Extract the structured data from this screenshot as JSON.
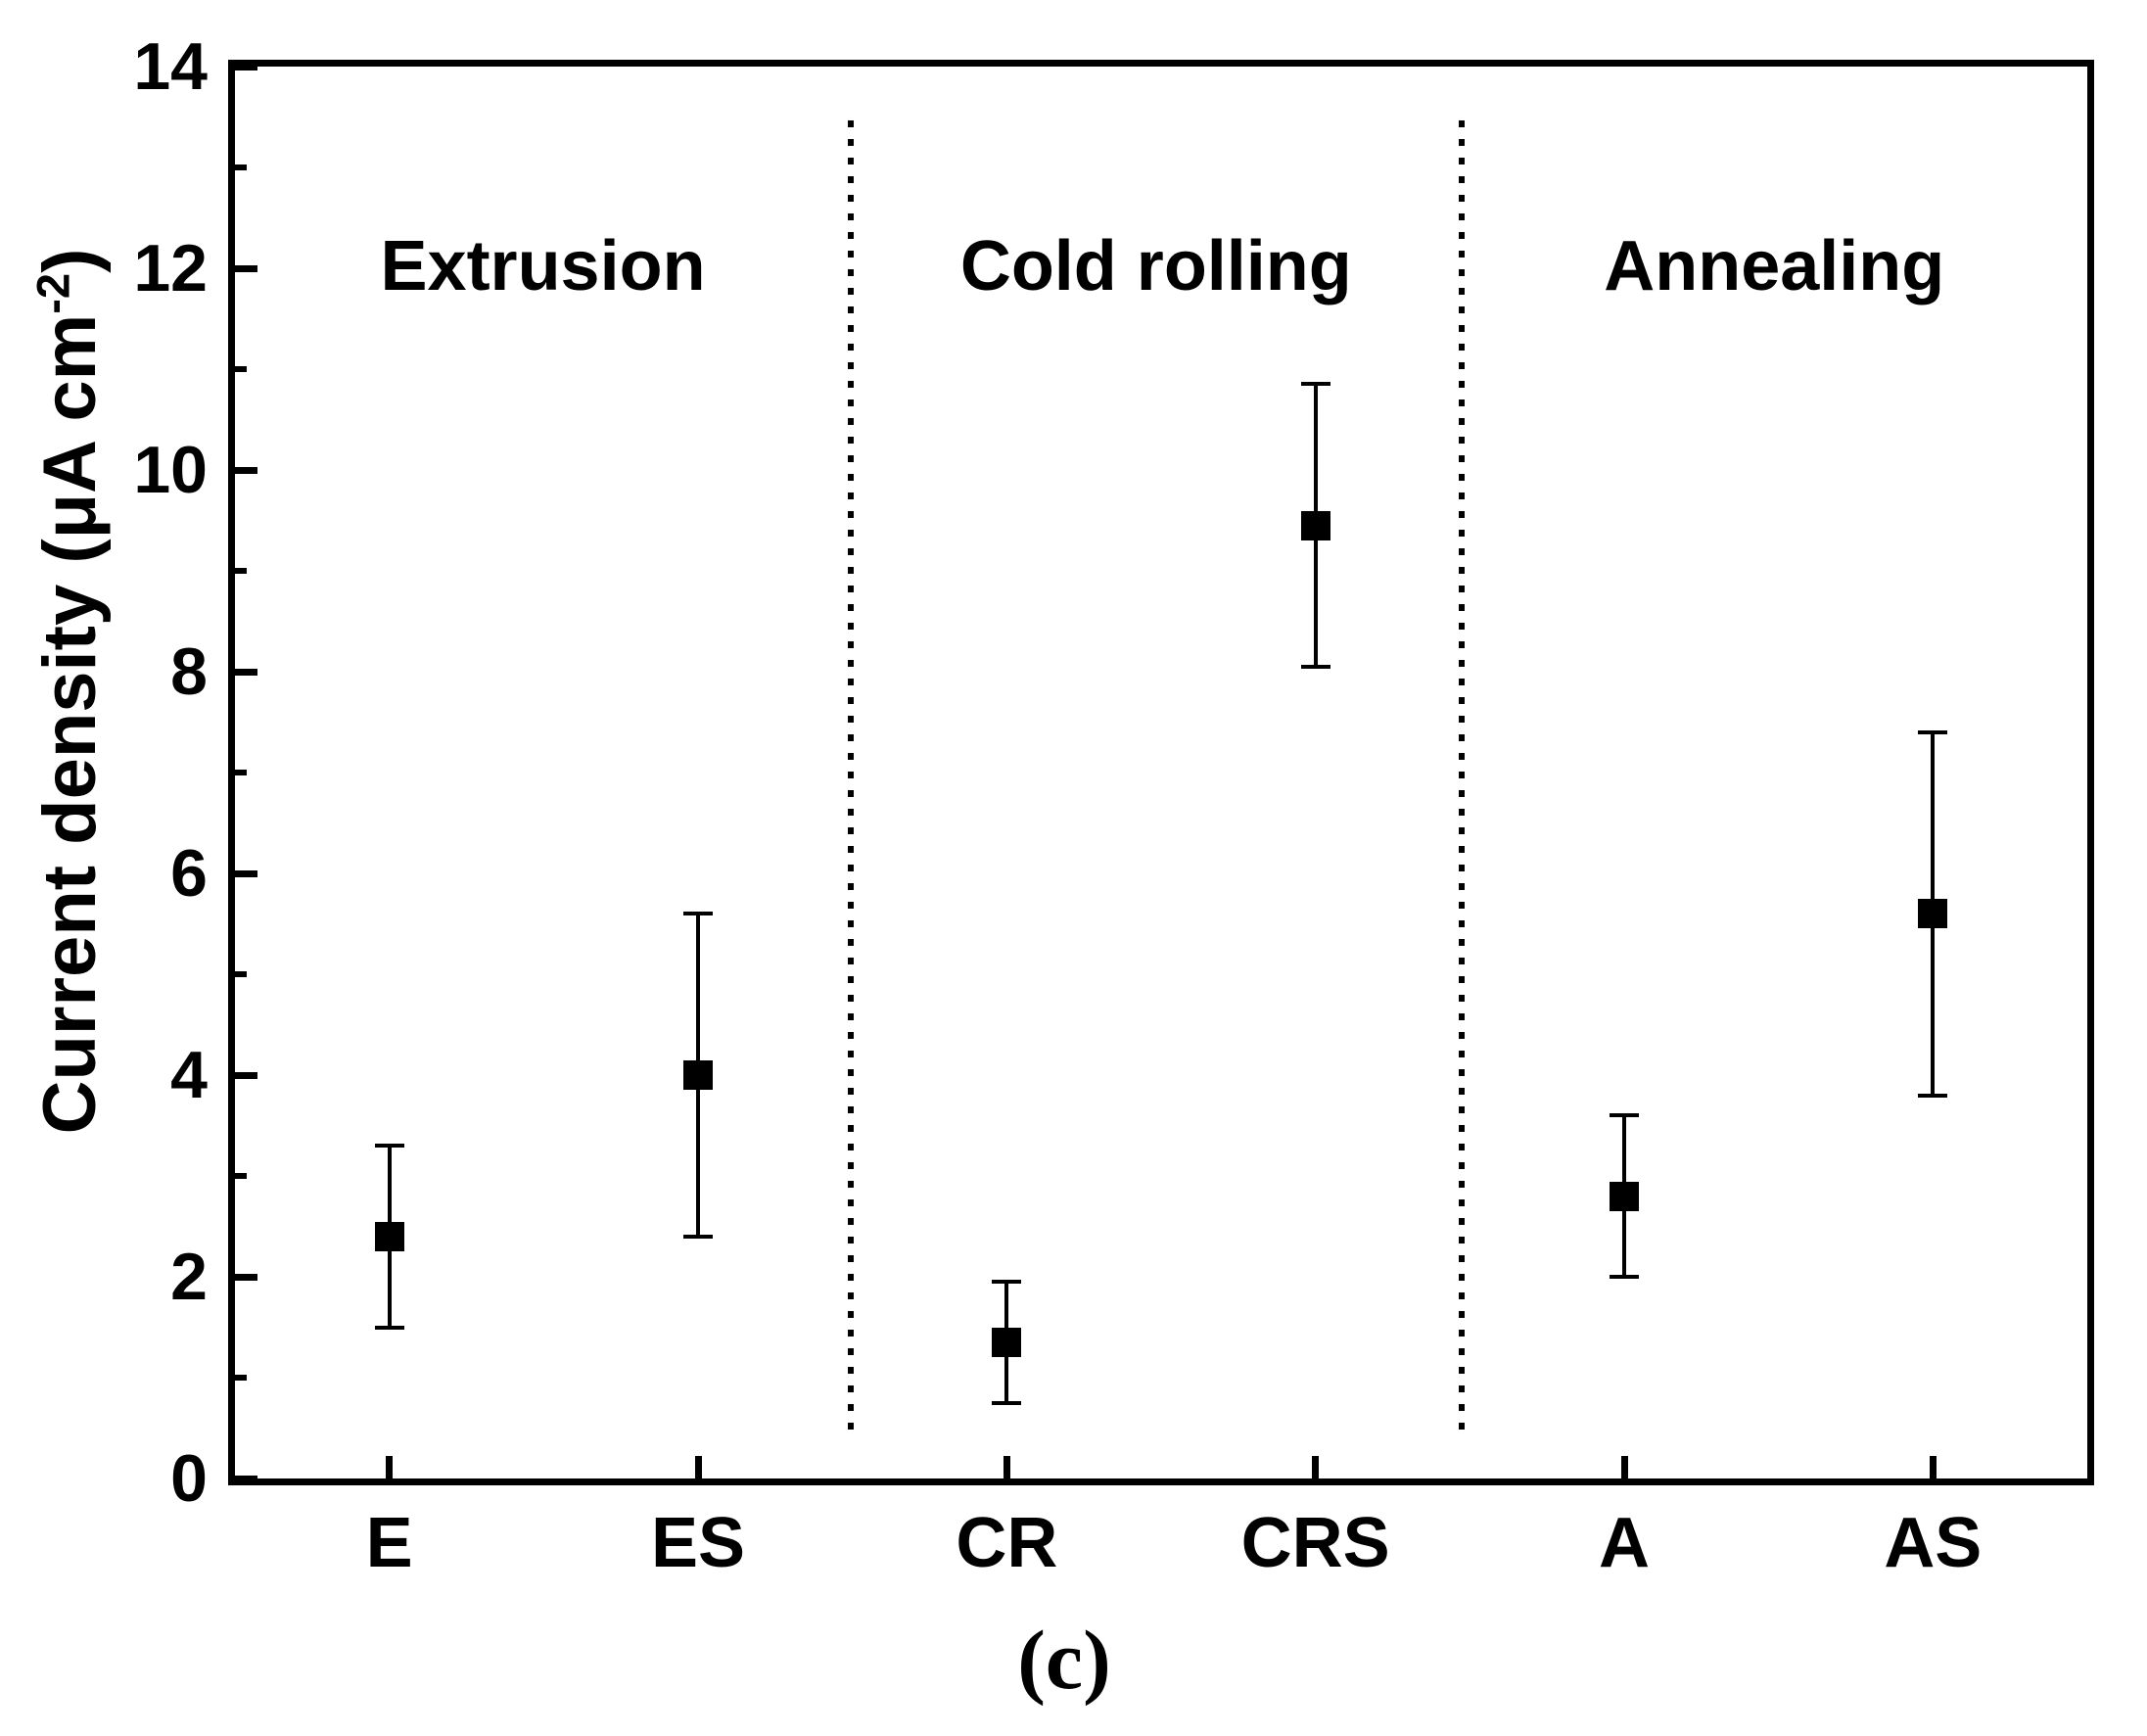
{
  "figure": {
    "background_color": "#ffffff",
    "foreground_color": "#000000"
  },
  "chart_data": {
    "type": "scatter",
    "title": "",
    "xlabel": "",
    "ylabel": "Current density (μA cm⁻²)",
    "ylabel_parts": {
      "prefix": "Current density (μA cm",
      "superscript": "-2",
      "suffix": ")"
    },
    "ylim": [
      0,
      14
    ],
    "y_major_ticks": [
      0,
      2,
      4,
      6,
      8,
      10,
      12,
      14
    ],
    "y_minor_ticks": [
      1,
      3,
      5,
      7,
      9,
      11,
      13
    ],
    "categories": [
      "E",
      "ES",
      "CR",
      "CRS",
      "A",
      "AS"
    ],
    "sections": [
      {
        "label": "Extrusion",
        "categories": [
          "E",
          "ES"
        ]
      },
      {
        "label": "Cold rolling",
        "categories": [
          "CR",
          "CRS"
        ]
      },
      {
        "label": "Annealing",
        "categories": [
          "A",
          "AS"
        ]
      }
    ],
    "separator_fractions": [
      0.3325,
      0.662
    ],
    "separator_style": "dotted",
    "grid": false,
    "legend": "none",
    "marker": "filled-square",
    "marker_color": "#000000",
    "series": [
      {
        "name": "current density",
        "color": "#000000",
        "points": [
          {
            "category": "E",
            "y": 2.4,
            "err_plus": 0.9,
            "err_minus": 0.9
          },
          {
            "category": "ES",
            "y": 4.0,
            "err_plus": 1.6,
            "err_minus": 1.6
          },
          {
            "category": "CR",
            "y": 1.35,
            "err_plus": 0.6,
            "err_minus": 0.6
          },
          {
            "category": "CRS",
            "y": 9.45,
            "err_plus": 1.4,
            "err_minus": 1.4
          },
          {
            "category": "A",
            "y": 2.8,
            "err_plus": 0.8,
            "err_minus": 0.8
          },
          {
            "category": "AS",
            "y": 5.6,
            "err_plus": 1.8,
            "err_minus": 1.8
          }
        ]
      }
    ],
    "caption": "(c)"
  }
}
